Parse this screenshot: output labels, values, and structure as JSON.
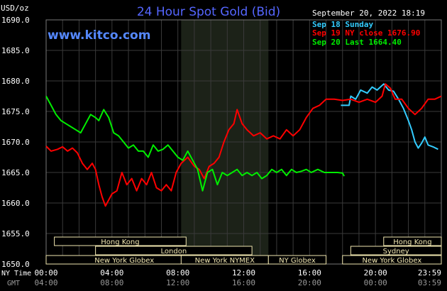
{
  "header": {
    "title": "24 Hour Spot Gold (Bid)",
    "timestamp": "September 20, 2022 18:19",
    "site": "www.kitco.com",
    "unit_label": "USD/oz"
  },
  "legend": [
    {
      "text": "Sep 18 Sunday",
      "color": "#33ccff"
    },
    {
      "text": "Sep 19 NY close 1676.90",
      "color": "#ff0000"
    },
    {
      "text": "Sep 20 Last 1664.40",
      "color": "#00ee00"
    }
  ],
  "axis_row_labels": {
    "ny_time": "NY Time",
    "gmt": "GMT"
  },
  "x_ticks_ny": [
    "00:00",
    "04:00",
    "08:00",
    "12:00",
    "16:00",
    "20:00",
    "23:59"
  ],
  "x_ticks_gmt": [
    "04:00",
    "08:00",
    "12:00",
    "16:00",
    "20:00",
    "00:00",
    "03:59"
  ],
  "sessions": [
    {
      "label": "Hong Kong",
      "start": 0.5,
      "end": 8.5
    },
    {
      "label": "London",
      "start": 3,
      "end": 12.5
    },
    {
      "label": "New York Globex",
      "start": 0,
      "end": 9.5
    },
    {
      "label": "New York NYMEX",
      "start": 8.2,
      "end": 13.5
    },
    {
      "label": "NY Globex",
      "start": 13.5,
      "end": 17
    },
    {
      "label": "Hong Kong",
      "start": 20.5,
      "end": 24
    },
    {
      "label": "Sydney",
      "start": 18.5,
      "end": 24
    },
    {
      "label": "New York Globex",
      "start": 18,
      "end": 24
    }
  ],
  "colors": {
    "background": "#000000",
    "grid": "#3a3a3a",
    "title": "#5566ff",
    "site": "#5588ff",
    "session_box": "#f0e6b0",
    "nymex_shade": "#1c2218"
  },
  "chart_data": {
    "type": "line",
    "title": "24 Hour Spot Gold (Bid)",
    "ylabel": "USD/oz",
    "xlabel": "NY Time",
    "ylim": [
      1650,
      1690
    ],
    "y_ticks": [
      "1650.0",
      "1655.0",
      "1660.0",
      "1665.0",
      "1670.0",
      "1675.0",
      "1680.0",
      "1685.0",
      "1690.0"
    ],
    "xlim_hours": [
      0,
      24
    ],
    "grid": true,
    "legend_position": "top-right",
    "shaded_region_hours": [
      8.2,
      13.5
    ],
    "series": [
      {
        "name": "Sep 18 Sunday",
        "color": "#33ccff",
        "points": [
          [
            17.9,
            1676
          ],
          [
            18.4,
            1676
          ],
          [
            18.5,
            1677.5
          ],
          [
            18.8,
            1677
          ],
          [
            19.1,
            1678.5
          ],
          [
            19.5,
            1678
          ],
          [
            19.8,
            1679
          ],
          [
            20.1,
            1678.5
          ],
          [
            20.5,
            1679.5
          ],
          [
            20.8,
            1678.5
          ],
          [
            21.1,
            1678.3
          ],
          [
            21.4,
            1677
          ],
          [
            21.7,
            1675.5
          ],
          [
            22.0,
            1673.5
          ],
          [
            22.2,
            1672
          ],
          [
            22.4,
            1670
          ],
          [
            22.6,
            1669
          ],
          [
            22.8,
            1669.8
          ],
          [
            23.0,
            1670.8
          ],
          [
            23.2,
            1669.5
          ],
          [
            23.5,
            1669.2
          ],
          [
            23.8,
            1668.8
          ]
        ]
      },
      {
        "name": "Sep 19 NY close 1676.90",
        "color": "#ff0000",
        "points": [
          [
            0,
            1669.3
          ],
          [
            0.3,
            1668.5
          ],
          [
            0.7,
            1668.8
          ],
          [
            1.0,
            1669.2
          ],
          [
            1.3,
            1668.5
          ],
          [
            1.6,
            1669
          ],
          [
            1.9,
            1668.2
          ],
          [
            2.2,
            1666.5
          ],
          [
            2.5,
            1665.5
          ],
          [
            2.8,
            1666.5
          ],
          [
            3.0,
            1665.5
          ],
          [
            3.2,
            1663
          ],
          [
            3.4,
            1661
          ],
          [
            3.6,
            1659.5
          ],
          [
            3.8,
            1660.5
          ],
          [
            4.0,
            1661.5
          ],
          [
            4.3,
            1662
          ],
          [
            4.6,
            1665
          ],
          [
            4.9,
            1663
          ],
          [
            5.2,
            1664
          ],
          [
            5.5,
            1662
          ],
          [
            5.8,
            1664
          ],
          [
            6.1,
            1663
          ],
          [
            6.4,
            1665
          ],
          [
            6.7,
            1662.5
          ],
          [
            7.0,
            1662
          ],
          [
            7.3,
            1663
          ],
          [
            7.6,
            1662
          ],
          [
            7.9,
            1665
          ],
          [
            8.2,
            1666.5
          ],
          [
            8.6,
            1667.5
          ],
          [
            9.0,
            1666
          ],
          [
            9.3,
            1665.5
          ],
          [
            9.6,
            1664
          ],
          [
            9.9,
            1666
          ],
          [
            10.2,
            1666.5
          ],
          [
            10.5,
            1667.5
          ],
          [
            10.8,
            1670
          ],
          [
            11.1,
            1672
          ],
          [
            11.4,
            1673
          ],
          [
            11.6,
            1675.3
          ],
          [
            11.9,
            1673
          ],
          [
            12.2,
            1672
          ],
          [
            12.6,
            1671
          ],
          [
            13.0,
            1671.5
          ],
          [
            13.4,
            1670.5
          ],
          [
            13.8,
            1671
          ],
          [
            14.2,
            1670.5
          ],
          [
            14.6,
            1672
          ],
          [
            15.0,
            1671
          ],
          [
            15.4,
            1672
          ],
          [
            15.8,
            1674
          ],
          [
            16.2,
            1675.5
          ],
          [
            16.6,
            1676
          ],
          [
            17.0,
            1677
          ],
          [
            17.5,
            1677
          ],
          [
            18.0,
            1676.8
          ],
          [
            18.5,
            1677
          ],
          [
            19.0,
            1676.5
          ],
          [
            19.5,
            1677
          ],
          [
            20.0,
            1676.5
          ],
          [
            20.4,
            1677.5
          ],
          [
            20.6,
            1679.5
          ],
          [
            20.9,
            1678.8
          ],
          [
            21.2,
            1677
          ],
          [
            21.6,
            1677
          ],
          [
            22.0,
            1675.5
          ],
          [
            22.4,
            1674.5
          ],
          [
            22.8,
            1675.5
          ],
          [
            23.2,
            1677
          ],
          [
            23.6,
            1677
          ],
          [
            24.0,
            1677.5
          ]
        ]
      },
      {
        "name": "Sep 20 Last 1664.40",
        "color": "#00ee00",
        "points": [
          [
            0,
            1677.5
          ],
          [
            0.3,
            1676
          ],
          [
            0.6,
            1674.5
          ],
          [
            0.9,
            1673.5
          ],
          [
            1.2,
            1673
          ],
          [
            1.5,
            1672.5
          ],
          [
            1.8,
            1672
          ],
          [
            2.1,
            1671.5
          ],
          [
            2.4,
            1673
          ],
          [
            2.7,
            1674.5
          ],
          [
            3.0,
            1674
          ],
          [
            3.2,
            1673.5
          ],
          [
            3.5,
            1675.3
          ],
          [
            3.8,
            1674
          ],
          [
            4.1,
            1671.5
          ],
          [
            4.4,
            1671
          ],
          [
            4.7,
            1670
          ],
          [
            5.0,
            1669
          ],
          [
            5.3,
            1669.5
          ],
          [
            5.6,
            1668.5
          ],
          [
            5.9,
            1668.5
          ],
          [
            6.2,
            1667.5
          ],
          [
            6.5,
            1669.5
          ],
          [
            6.8,
            1668.5
          ],
          [
            7.1,
            1668.8
          ],
          [
            7.4,
            1669.5
          ],
          [
            7.7,
            1668.5
          ],
          [
            8.0,
            1667.5
          ],
          [
            8.3,
            1667
          ],
          [
            8.6,
            1668.5
          ],
          [
            8.9,
            1667
          ],
          [
            9.2,
            1665.5
          ],
          [
            9.5,
            1662
          ],
          [
            9.8,
            1665
          ],
          [
            10.1,
            1665.5
          ],
          [
            10.4,
            1663
          ],
          [
            10.7,
            1665
          ],
          [
            11.0,
            1664.5
          ],
          [
            11.3,
            1665
          ],
          [
            11.6,
            1665.5
          ],
          [
            11.9,
            1664.5
          ],
          [
            12.2,
            1665
          ],
          [
            12.5,
            1664.5
          ],
          [
            12.8,
            1665
          ],
          [
            13.1,
            1664
          ],
          [
            13.4,
            1664.5
          ],
          [
            13.7,
            1665.5
          ],
          [
            14.0,
            1665
          ],
          [
            14.3,
            1665.5
          ],
          [
            14.6,
            1664.5
          ],
          [
            14.9,
            1665.5
          ],
          [
            15.2,
            1665
          ],
          [
            15.5,
            1665.2
          ],
          [
            15.8,
            1665.5
          ],
          [
            16.1,
            1665
          ],
          [
            16.5,
            1665.5
          ],
          [
            16.9,
            1665
          ],
          [
            17.3,
            1665
          ],
          [
            17.7,
            1665
          ],
          [
            18.0,
            1664.9
          ],
          [
            18.1,
            1664.4
          ]
        ]
      }
    ]
  }
}
